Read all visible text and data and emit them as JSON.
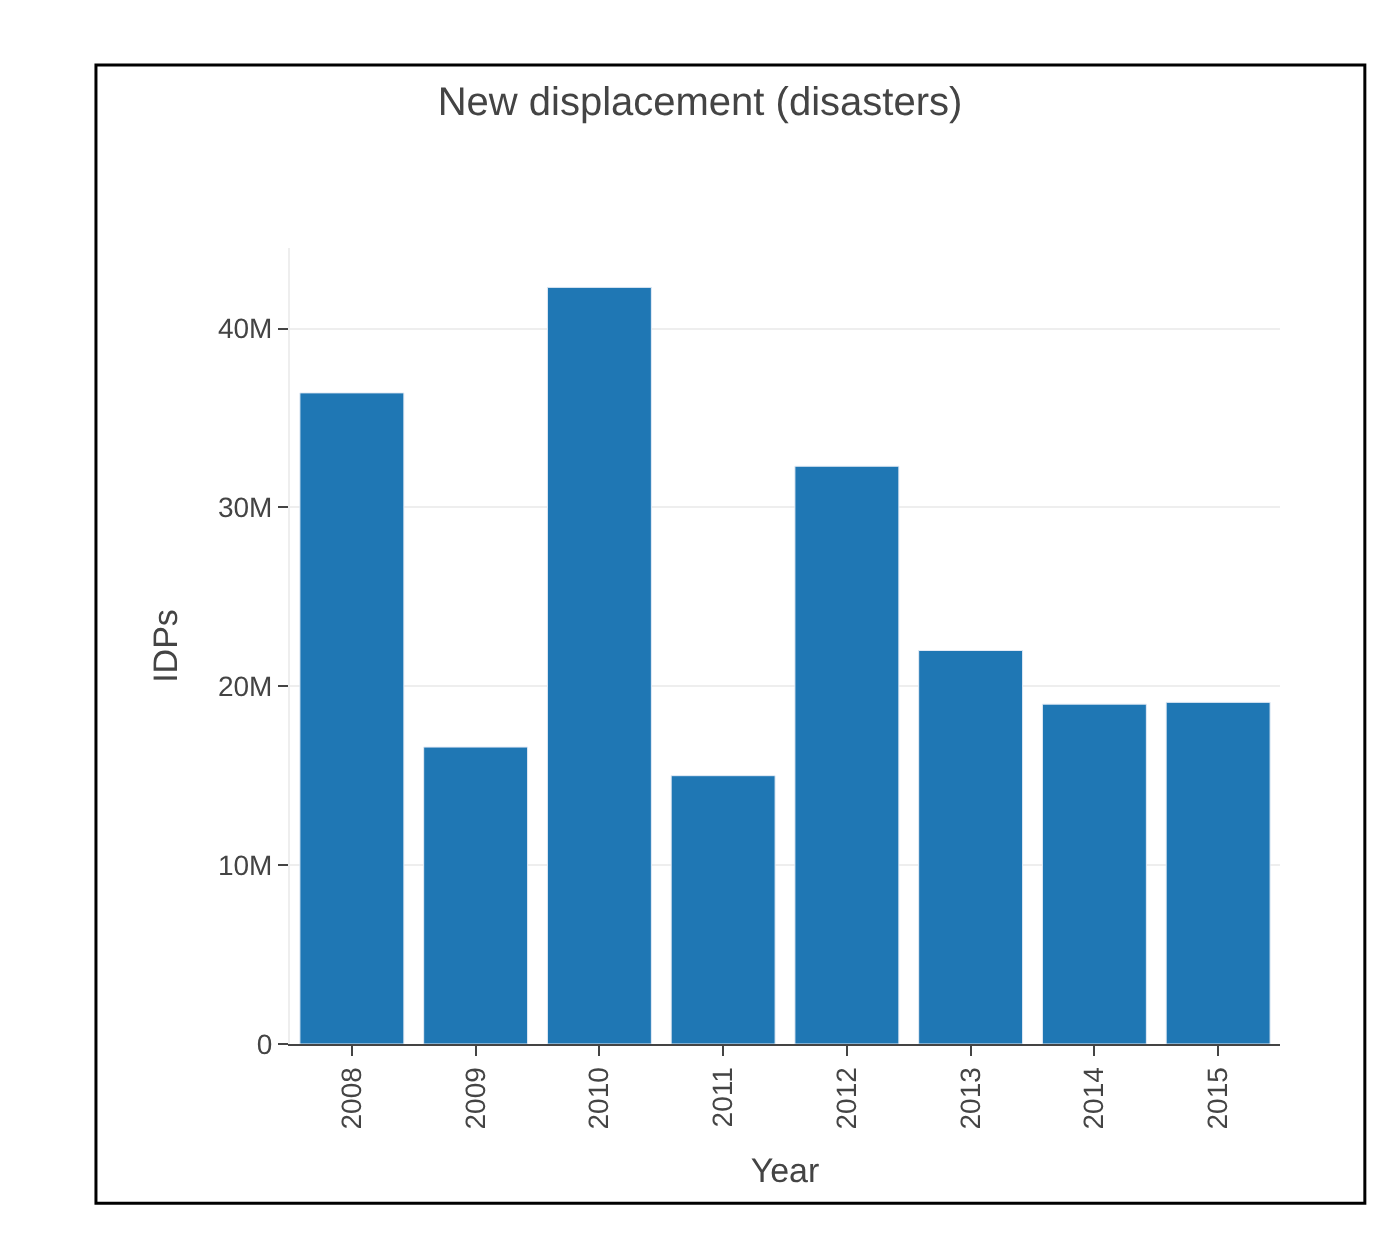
{
  "chart_data": {
    "type": "bar",
    "title": "New displacement (disasters)",
    "xlabel": "Year",
    "ylabel": "IDPs",
    "categories": [
      "2008",
      "2009",
      "2010",
      "2011",
      "2012",
      "2013",
      "2014",
      "2015"
    ],
    "series": [
      {
        "color": "#1f77b4",
        "values": [
          36400000,
          16600000,
          42300000,
          15000000,
          32300000,
          22000000,
          19000000,
          19100000
        ]
      }
    ],
    "ylim": [
      0,
      44500000
    ],
    "yticks": [
      0,
      {
        "value": 10000000,
        "label": "10M"
      },
      {
        "value": 20000000,
        "label": "20M"
      },
      {
        "value": 30000000,
        "label": "30M"
      },
      {
        "value": 40000000,
        "label": "40M"
      }
    ],
    "grid": "y"
  }
}
